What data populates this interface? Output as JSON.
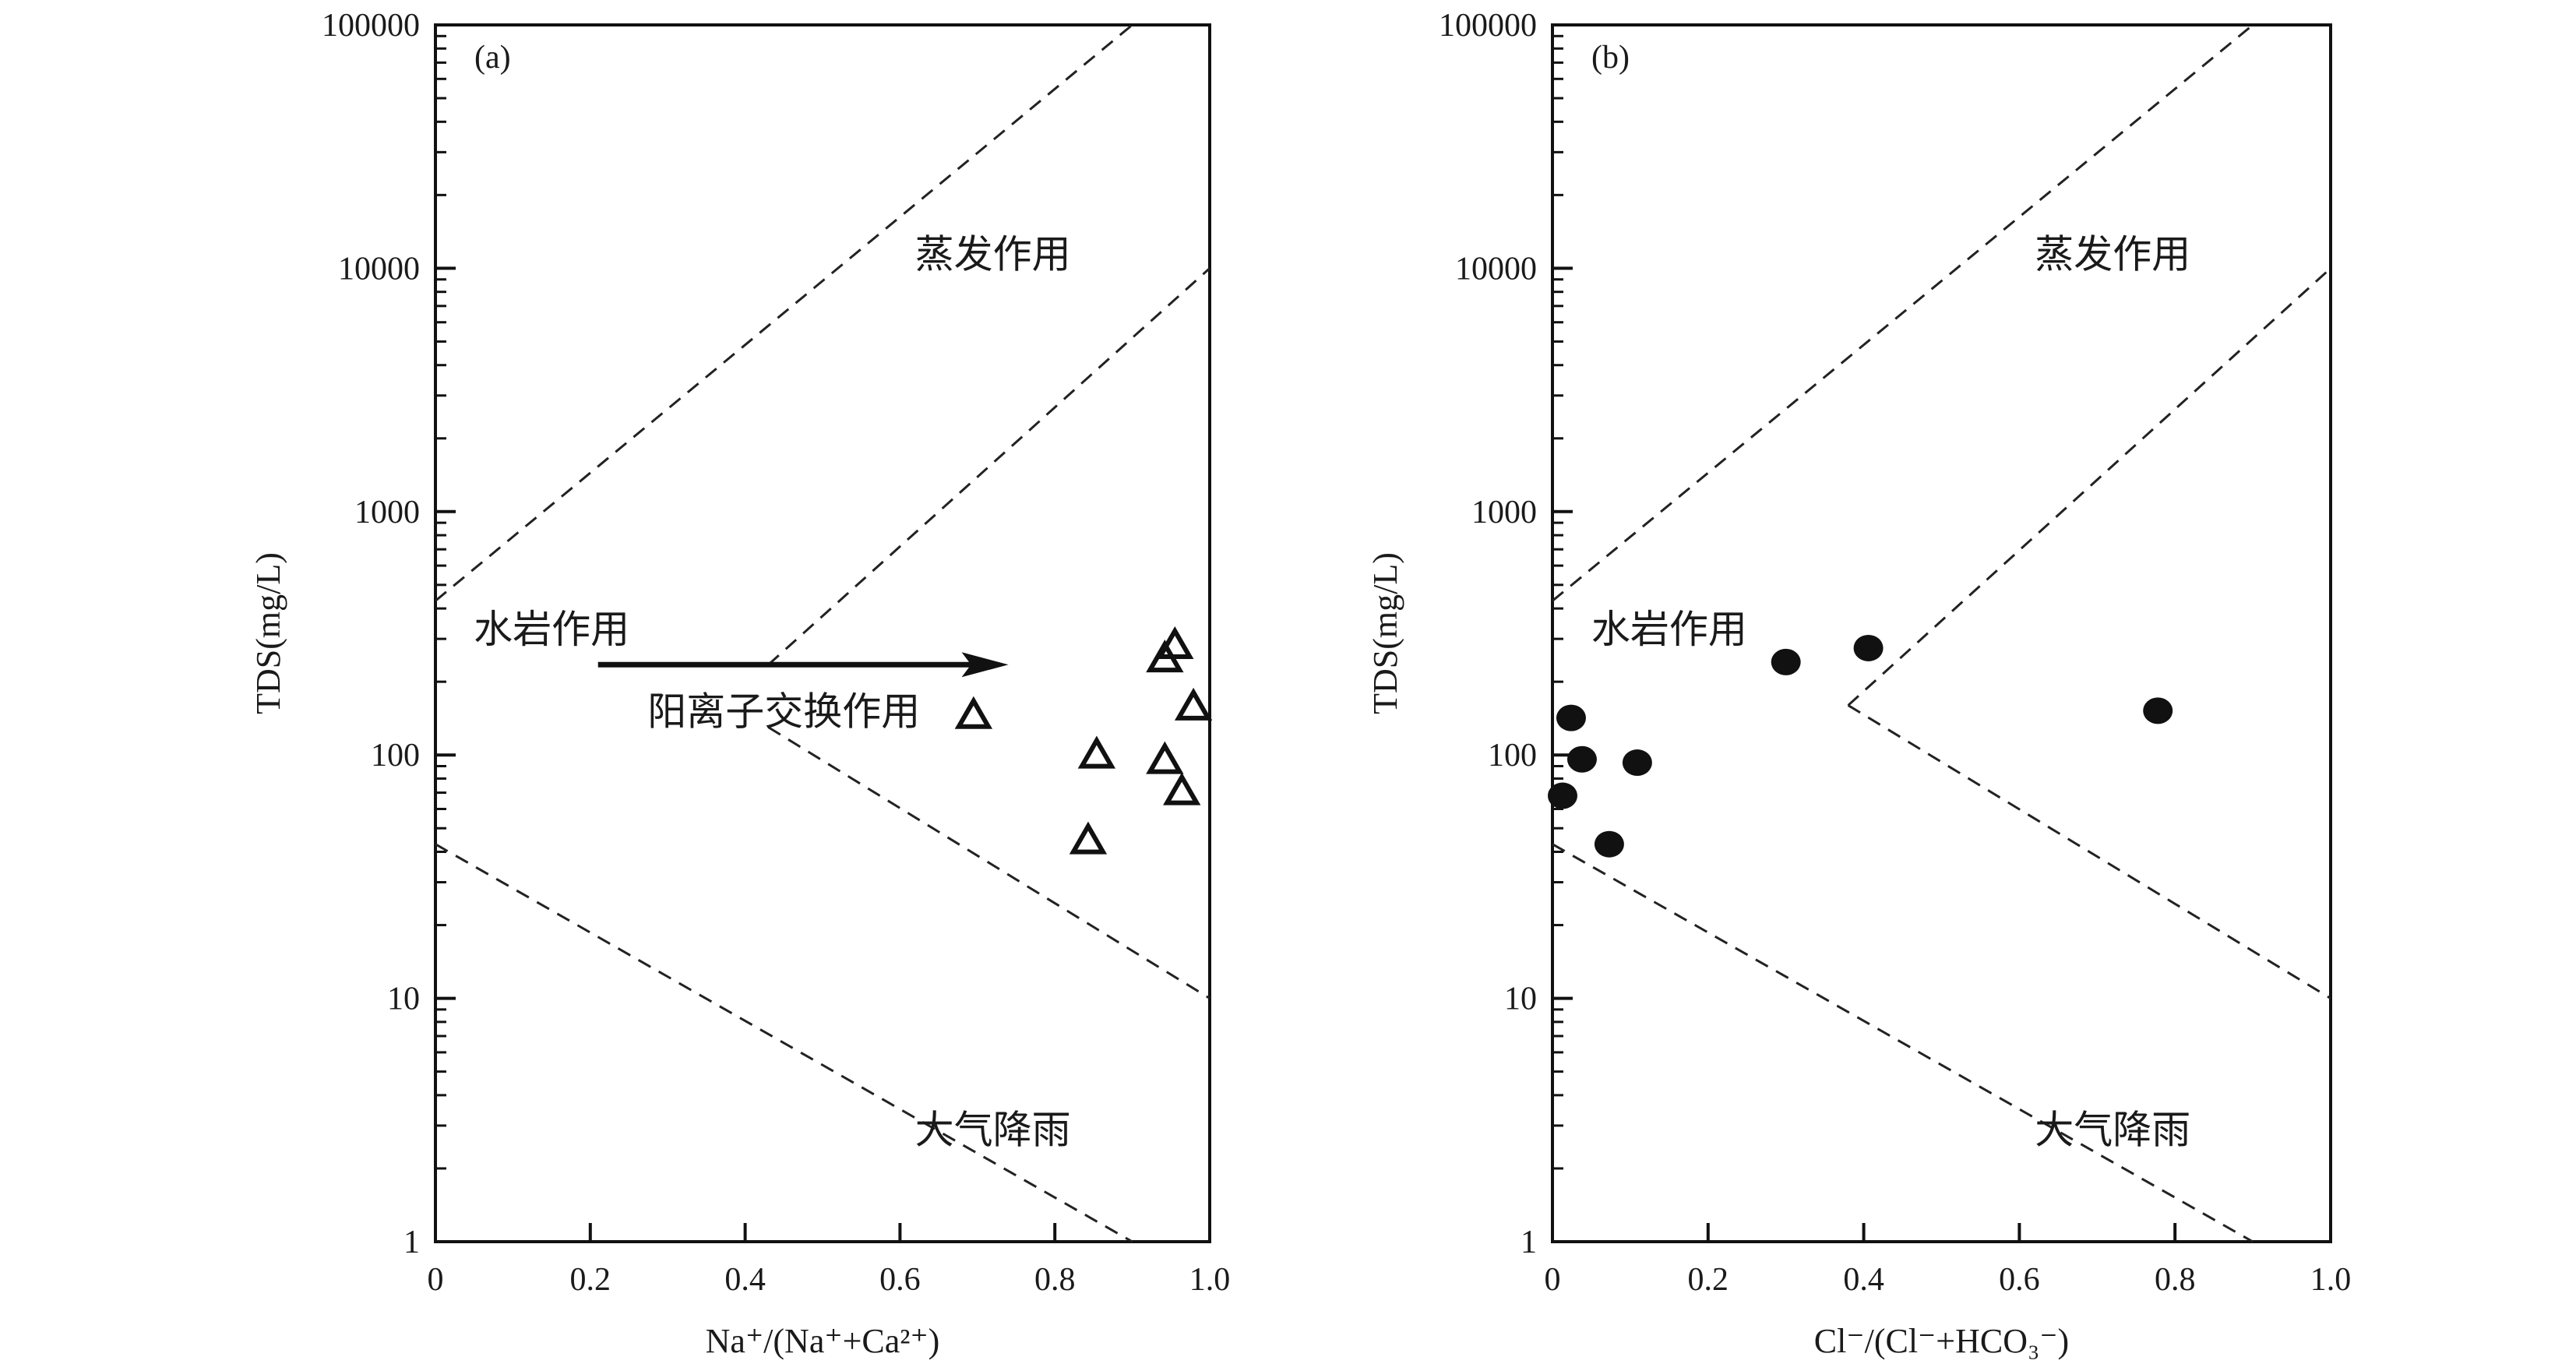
{
  "chart_data": [
    {
      "type": "scatter",
      "panel_label": "(a)",
      "xlabel": "Na⁺/(Na⁺+Ca²⁺)",
      "ylabel": "TDS(mg/L)",
      "xlim": [
        0,
        1.0
      ],
      "ylim": [
        1,
        100000
      ],
      "yscale": "log",
      "xticks": [
        "0",
        "0.2",
        "0.4",
        "0.6",
        "0.8",
        "1.0"
      ],
      "yticks": [
        "1",
        "10",
        "100",
        "1000",
        "10000",
        "100000"
      ],
      "marker": "open-triangle",
      "points": [
        {
          "x": 0.695,
          "y": 144
        },
        {
          "x": 0.854,
          "y": 99
        },
        {
          "x": 0.843,
          "y": 44
        },
        {
          "x": 0.942,
          "y": 246
        },
        {
          "x": 0.955,
          "y": 279
        },
        {
          "x": 0.979,
          "y": 156
        },
        {
          "x": 0.942,
          "y": 94
        },
        {
          "x": 0.964,
          "y": 70
        }
      ],
      "boundaries": [
        [
          [
            0.0,
            430
          ],
          [
            0.9,
            100000
          ]
        ],
        [
          [
            0.43,
            235
          ],
          [
            1.0,
            10000
          ]
        ],
        [
          [
            0.43,
            130
          ],
          [
            1.0,
            10
          ]
        ],
        [
          [
            0.0,
            43
          ],
          [
            0.9,
            1
          ]
        ]
      ],
      "arrow": {
        "from": [
          0.21,
          235
        ],
        "to": [
          0.74,
          235
        ]
      },
      "annotations": [
        {
          "text": "蒸发作用",
          "x": 0.72,
          "y": 11500
        },
        {
          "text": "水岩作用",
          "x": 0.15,
          "y": 330
        },
        {
          "text": "阳离子交换作用",
          "x": 0.45,
          "y": 152
        },
        {
          "text": "大气降雨",
          "x": 0.72,
          "y": 2.9
        }
      ]
    },
    {
      "type": "scatter",
      "panel_label": "(b)",
      "xlabel": "Cl⁻/(Cl⁻+HCO₃⁻)",
      "ylabel": "TDS(mg/L)",
      "xlim": [
        0,
        1.0
      ],
      "ylim": [
        1,
        100000
      ],
      "yscale": "log",
      "xticks": [
        "0",
        "0.2",
        "0.4",
        "0.6",
        "0.8",
        "1.0"
      ],
      "yticks": [
        "1",
        "10",
        "100",
        "1000",
        "10000",
        "100000"
      ],
      "marker": "filled-circle",
      "points": [
        {
          "x": 0.024,
          "y": 142
        },
        {
          "x": 0.038,
          "y": 96
        },
        {
          "x": 0.013,
          "y": 68
        },
        {
          "x": 0.109,
          "y": 93
        },
        {
          "x": 0.073,
          "y": 43
        },
        {
          "x": 0.3,
          "y": 241
        },
        {
          "x": 0.406,
          "y": 275
        },
        {
          "x": 0.778,
          "y": 152
        }
      ],
      "boundaries": [
        [
          [
            0.0,
            430
          ],
          [
            0.9,
            100000
          ]
        ],
        [
          [
            0.38,
            160
          ],
          [
            1.0,
            10000
          ]
        ],
        [
          [
            0.38,
            160
          ],
          [
            1.0,
            10
          ]
        ],
        [
          [
            0.0,
            43
          ],
          [
            0.9,
            1
          ]
        ]
      ],
      "annotations": [
        {
          "text": "蒸发作用",
          "x": 0.72,
          "y": 11500
        },
        {
          "text": "水岩作用",
          "x": 0.15,
          "y": 330
        },
        {
          "text": "大气降雨",
          "x": 0.72,
          "y": 2.9
        }
      ]
    }
  ]
}
